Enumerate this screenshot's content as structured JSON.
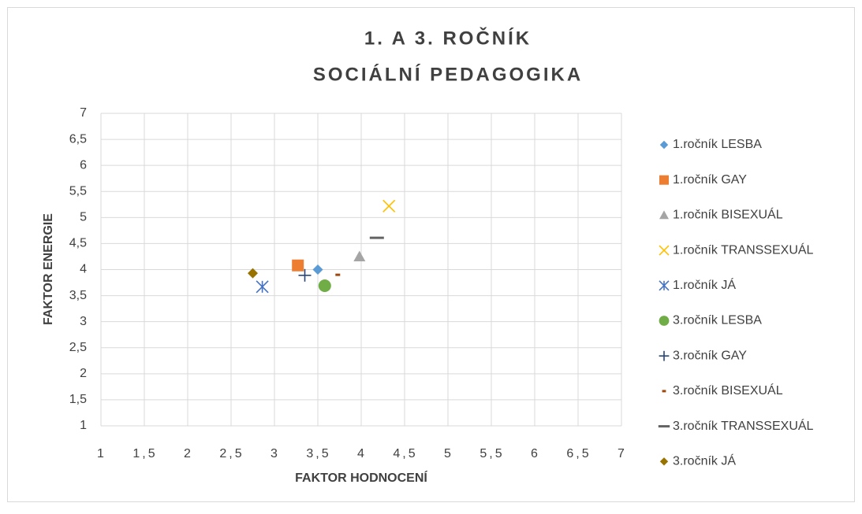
{
  "chart_data": {
    "type": "scatter",
    "title": [
      "1. A 3. ROČNÍK",
      "SOCIÁLNÍ PEDAGOGIKA"
    ],
    "x_label": "FAKTOR HODNOCENÍ",
    "y_label": "FAKTOR ENERGIE",
    "xlim": [
      1,
      7
    ],
    "ylim": [
      1,
      7
    ],
    "xticks": [
      1,
      {
        "value": 1.5,
        "label": "1,5"
      },
      2,
      {
        "value": 2.5,
        "label": "2,5"
      },
      3,
      {
        "value": 3.5,
        "label": "3,5"
      },
      4,
      {
        "value": 4.5,
        "label": "4,5"
      },
      5,
      {
        "value": 5.5,
        "label": "5,5"
      },
      6,
      {
        "value": 6.5,
        "label": "6,5"
      },
      7
    ],
    "yticks": [
      1,
      {
        "value": 1.5,
        "label": "1,5"
      },
      2,
      {
        "value": 2.5,
        "label": "2,5"
      },
      3,
      {
        "value": 3.5,
        "label": "3,5"
      },
      4,
      {
        "value": 4.5,
        "label": "4,5"
      },
      5,
      {
        "value": 5.5,
        "label": "5,5"
      },
      6,
      {
        "value": 6.5,
        "label": "6,5"
      },
      7
    ],
    "grid": true,
    "legend": "right",
    "series": [
      {
        "name": "1.ročník LESBA",
        "color": "#5b9bd5",
        "marker": "diamond",
        "x": [
          3.5
        ],
        "values": [
          4.0
        ]
      },
      {
        "name": "1.ročník GAY",
        "color": "#ed7d31",
        "marker": "square",
        "x": [
          3.27
        ],
        "values": [
          4.08
        ]
      },
      {
        "name": "1.ročník BISEXUÁL",
        "color": "#a5a5a5",
        "marker": "triangle",
        "x": [
          3.98
        ],
        "values": [
          4.25
        ]
      },
      {
        "name": "1.ročník TRANSSEXUÁL",
        "color": "#ffc000",
        "marker": "x",
        "x": [
          4.32
        ],
        "values": [
          5.22
        ]
      },
      {
        "name": "1.ročník JÁ",
        "color": "#4472c4",
        "marker": "star",
        "x": [
          2.86
        ],
        "values": [
          3.67
        ]
      },
      {
        "name": "3.ročník LESBA",
        "color": "#70ad47",
        "marker": "circle",
        "x": [
          3.58
        ],
        "values": [
          3.69
        ]
      },
      {
        "name": "3.ročník GAY",
        "color": "#264478",
        "marker": "plus",
        "x": [
          3.35
        ],
        "values": [
          3.89
        ]
      },
      {
        "name": "3.ročník BISEXUÁL",
        "color": "#9e480e",
        "marker": "dash",
        "x": [
          3.73
        ],
        "values": [
          3.9
        ]
      },
      {
        "name": "3.ročník TRANSSEXUÁL",
        "color": "#636363",
        "marker": "dash-long",
        "x": [
          4.18
        ],
        "values": [
          4.61
        ]
      },
      {
        "name": "3.ročník JÁ",
        "color": "#997300",
        "marker": "diamond",
        "x": [
          2.75
        ],
        "values": [
          3.93
        ]
      }
    ]
  }
}
